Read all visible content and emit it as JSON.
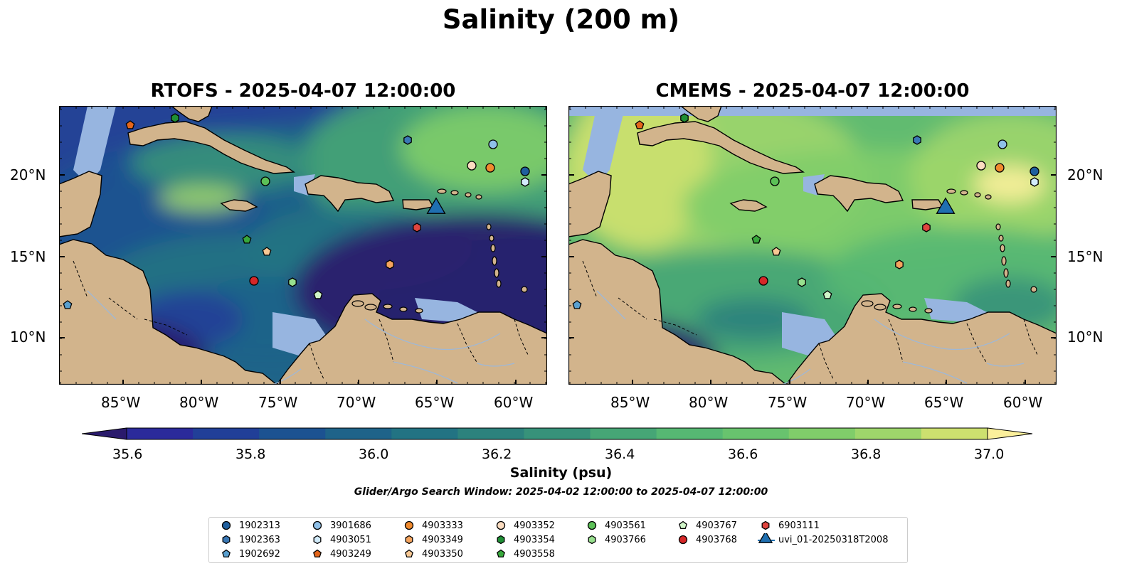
{
  "suptitle": "Salinity (200 m)",
  "panels": [
    {
      "title": "RTOFS - 2025-04-07 12:00:00"
    },
    {
      "title": "CMEMS - 2025-04-07 12:00:00"
    }
  ],
  "axes": {
    "lon_ticks": [
      "85°W",
      "80°W",
      "75°W",
      "70°W",
      "65°W",
      "60°W"
    ],
    "lat_ticks": [
      "20°N",
      "15°N",
      "10°N"
    ]
  },
  "colorbar": {
    "label": "Salinity (psu)",
    "ticks": [
      "35.6",
      "35.8",
      "36.0",
      "36.2",
      "36.4",
      "36.6",
      "36.8",
      "37.0"
    ],
    "colors": [
      "#2a1a6c",
      "#2b2a9b",
      "#213f98",
      "#1c5291",
      "#1e6389",
      "#227383",
      "#2c827d",
      "#37927a",
      "#46a676",
      "#56b873",
      "#68c36e",
      "#80cd6a",
      "#9ed66b",
      "#cde06f",
      "#fbef9b"
    ]
  },
  "search_window": "Glider/Argo Search Window: 2025-04-02 12:00:00 to 2025-04-07 12:00:00",
  "legend": [
    {
      "label": "1902313",
      "shape": "circle",
      "color": "#1f5f9e"
    },
    {
      "label": "1902363",
      "shape": "hexagon",
      "color": "#3a78b5"
    },
    {
      "label": "1902692",
      "shape": "pentagon",
      "color": "#5aa0cf"
    },
    {
      "label": "3901686",
      "shape": "circle",
      "color": "#8fc0e8"
    },
    {
      "label": "4903051",
      "shape": "hexagon",
      "color": "#d2ebfb"
    },
    {
      "label": "4903249",
      "shape": "pentagon",
      "color": "#e4661b"
    },
    {
      "label": "4903333",
      "shape": "circle",
      "color": "#f08a2e"
    },
    {
      "label": "4903349",
      "shape": "hexagon",
      "color": "#f5a45e"
    },
    {
      "label": "4903350",
      "shape": "pentagon",
      "color": "#f8c894"
    },
    {
      "label": "4903352",
      "shape": "circle",
      "color": "#fbdcc0"
    },
    {
      "label": "4903354",
      "shape": "hexagon",
      "color": "#1f8f35"
    },
    {
      "label": "4903558",
      "shape": "pentagon",
      "color": "#38a83c"
    },
    {
      "label": "4903561",
      "shape": "circle",
      "color": "#5cc057"
    },
    {
      "label": "4903766",
      "shape": "hexagon",
      "color": "#98e08e"
    },
    {
      "label": "4903767",
      "shape": "pentagon",
      "color": "#d0f5c8"
    },
    {
      "label": "4903768",
      "shape": "circle",
      "color": "#d62728"
    },
    {
      "label": "6903111",
      "shape": "hexagon",
      "color": "#e0453f"
    },
    {
      "label": "uvi_01-20250318T2008",
      "shape": "triangle",
      "color": "#1f6fb0"
    }
  ],
  "colors": {
    "land": "#d2b48c",
    "shelf": "#97b5e0",
    "coast": "#000000",
    "river": "#9eb8d8"
  }
}
